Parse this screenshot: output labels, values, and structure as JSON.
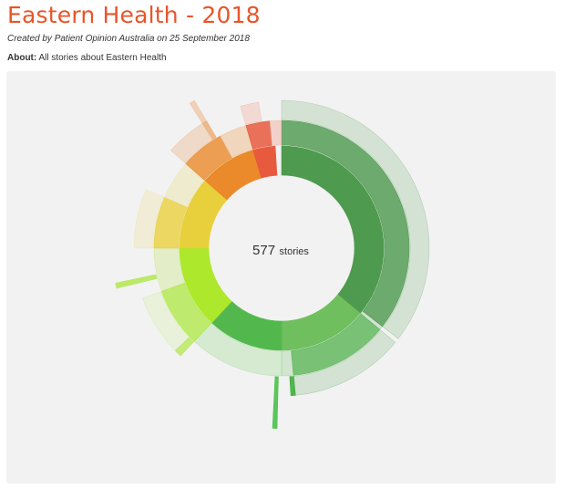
{
  "header": {
    "title": "Eastern Health - 2018",
    "subtitle": "Created by Patient Opinion Australia on 25 September 2018",
    "about_label": "About:",
    "about_text": "All stories about Eastern Health"
  },
  "chart_data": {
    "type": "sunburst",
    "total": 577,
    "total_label": "577",
    "total_unit": "stories",
    "inner_ring": [
      {
        "share": 0.36,
        "color": "#4e9a4e"
      },
      {
        "share": 0.14,
        "color": "#6fbf5f"
      },
      {
        "share": 0.12,
        "color": "#52b84e"
      },
      {
        "share": 0.13,
        "color": "#aee82c"
      },
      {
        "share": 0.115,
        "color": "#e8d03d"
      },
      {
        "share": 0.09,
        "color": "#ea8a2a"
      },
      {
        "share": 0.035,
        "color": "#e85a3e"
      }
    ],
    "middle_ring": [
      {
        "share": 0.355,
        "color": "#4f9a4f",
        "opacity": 0.82
      },
      {
        "share": 0.005,
        "color": "#4f9a4f",
        "opacity": 0.18
      },
      {
        "share": 0.125,
        "color": "#5ab555",
        "opacity": 0.8
      },
      {
        "share": 0.015,
        "color": "#5ab555",
        "opacity": 0.22
      },
      {
        "share": 0.12,
        "color": "#7fd470",
        "opacity": 0.25
      },
      {
        "share": 0.075,
        "color": "#a8e834",
        "opacity": 0.7
      },
      {
        "share": 0.055,
        "color": "#bfe56a",
        "opacity": 0.3
      },
      {
        "share": 0.065,
        "color": "#e8d03d",
        "opacity": 0.8
      },
      {
        "share": 0.05,
        "color": "#ecdf8f",
        "opacity": 0.35
      },
      {
        "share": 0.055,
        "color": "#ea8a2a",
        "opacity": 0.8
      },
      {
        "share": 0.035,
        "color": "#f0b98a",
        "opacity": 0.5
      },
      {
        "share": 0.03,
        "color": "#e85a3e",
        "opacity": 0.85
      },
      {
        "share": 0.015,
        "color": "#f2a090",
        "opacity": 0.4
      }
    ],
    "outer_ring": [
      {
        "share": 0.355,
        "color": "#4f9a4f",
        "opacity": 0.18
      },
      {
        "share": 0.005,
        "color": "#4f9a4f",
        "opacity": 0.0
      },
      {
        "share": 0.125,
        "color": "#4f9a4f",
        "opacity": 0.18
      },
      {
        "share": 0.005,
        "color": "#3fae3f",
        "opacity": 0.9
      },
      {
        "share": 0.01,
        "color": "#ffffff",
        "opacity": 0.0
      },
      {
        "share": 0.12,
        "color": "#ffffff",
        "opacity": 0.0
      },
      {
        "share": 0.008,
        "color": "#b6e85a",
        "opacity": 0.8
      },
      {
        "share": 0.067,
        "color": "#b6e85a",
        "opacity": 0.15
      },
      {
        "share": 0.055,
        "color": "#ffffff",
        "opacity": 0.0
      },
      {
        "share": 0.065,
        "color": "#ecdf8f",
        "opacity": 0.28
      },
      {
        "share": 0.05,
        "color": "#ffffff",
        "opacity": 0.0
      },
      {
        "share": 0.045,
        "color": "#ecb58a",
        "opacity": 0.4
      },
      {
        "share": 0.005,
        "color": "#ea8a2a",
        "opacity": 0.5
      },
      {
        "share": 0.005,
        "color": "#ffffff",
        "opacity": 0.0
      },
      {
        "share": 0.035,
        "color": "#ffffff",
        "opacity": 0.0
      },
      {
        "share": 0.02,
        "color": "#f2a090",
        "opacity": 0.3
      },
      {
        "share": 0.025,
        "color": "#ffffff",
        "opacity": 0.0
      }
    ],
    "spikes": [
      {
        "start": 0.504,
        "end": 0.508,
        "radius_factor": 1.22,
        "color": "#4cc04c",
        "opacity": 0.9
      },
      {
        "start": 0.712,
        "end": 0.717,
        "radius_factor": 1.15,
        "color": "#b6e85a",
        "opacity": 0.9
      },
      {
        "start": 0.91,
        "end": 0.915,
        "radius_factor": 1.16,
        "color": "#ecb58a",
        "opacity": 0.55
      }
    ]
  }
}
